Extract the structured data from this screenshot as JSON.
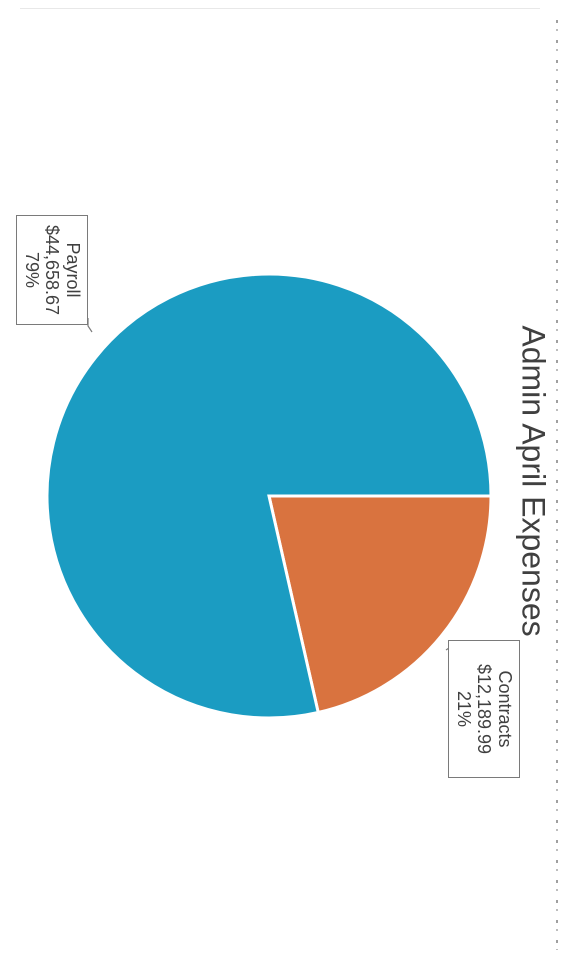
{
  "chart_data": {
    "type": "pie",
    "title": "Admin April Expenses",
    "slices": [
      {
        "label": "Payroll",
        "value": 44658.67,
        "value_label": "$44,658.67",
        "percent_label": "79%",
        "color": "#1b9cc2"
      },
      {
        "label": "Contracts",
        "value": 12189.99,
        "value_label": "$12,189.99",
        "percent_label": "21%",
        "color": "#d9733f"
      }
    ],
    "start_angle_deg": 0,
    "legend": "none",
    "orientation": "rotated-90-clockwise"
  }
}
